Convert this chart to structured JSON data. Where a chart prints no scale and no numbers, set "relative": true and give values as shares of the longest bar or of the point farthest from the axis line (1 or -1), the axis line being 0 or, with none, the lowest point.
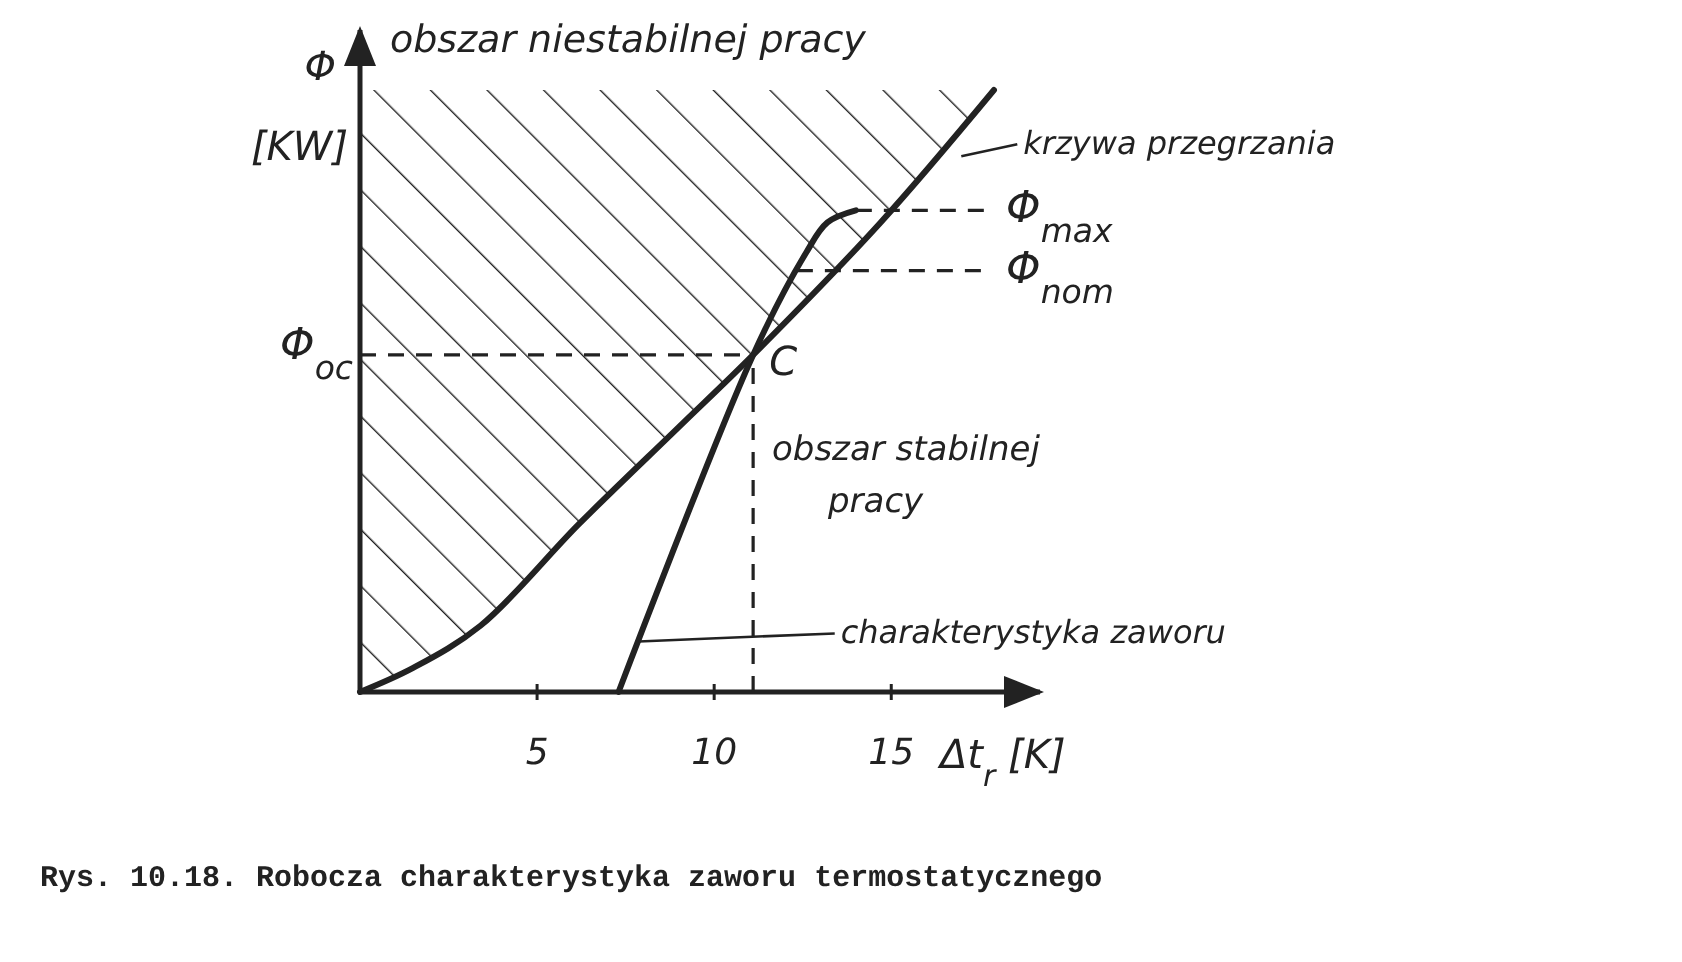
{
  "chart_data": {
    "type": "line",
    "relative": true,
    "xlabel": "Δt$_{r}$ [K]",
    "ylabel": "Φ [KW]",
    "xlim": [
      0,
      19.2
    ],
    "xticks": [
      5,
      10,
      15
    ],
    "series": [
      {
        "name": "krzywa przegrzania",
        "color": "#222222",
        "x": [
          0,
          1.5,
          3.4,
          6.2,
          9.0,
          11.1,
          14.7,
          17.9
        ],
        "values": [
          0,
          0.04,
          0.11,
          0.28,
          0.44,
          0.56,
          0.78,
          1
        ],
        "lower": [
          0,
          0.04,
          0.11,
          0.28,
          0.44,
          0.56,
          0.78,
          1
        ],
        "upper": [
          1,
          1,
          1,
          1,
          1,
          1,
          1,
          1
        ]
      },
      {
        "name": "charakterystyka zaworu",
        "color": "#222222",
        "x": [
          7.3,
          11.1,
          12.6,
          13.2,
          14.0
        ],
        "values": [
          0,
          0.56,
          0.73,
          0.78,
          0.8
        ]
      }
    ],
    "ref_lines": [
      {
        "axis": "y",
        "value": 0.56,
        "label": "Φ$_{oc}$",
        "line_style": "dashed"
      },
      {
        "axis": "y",
        "value": 0.8,
        "label": "Φ$_{max}$",
        "line_style": "dashed"
      },
      {
        "axis": "y",
        "value": 0.7,
        "label": "Φ$_{nom}$",
        "line_style": "dashed"
      },
      {
        "axis": "x",
        "value": 11.1,
        "line_style": "dashed"
      }
    ],
    "annotations": [
      {
        "text": "C",
        "x": 11.1,
        "y": 0.56
      },
      "obszar niestabilnej pracy",
      "obszar stabilnej pracy",
      "Rys. 10.18. Robocza charakterystyka zaworu termostatycznego"
    ]
  }
}
